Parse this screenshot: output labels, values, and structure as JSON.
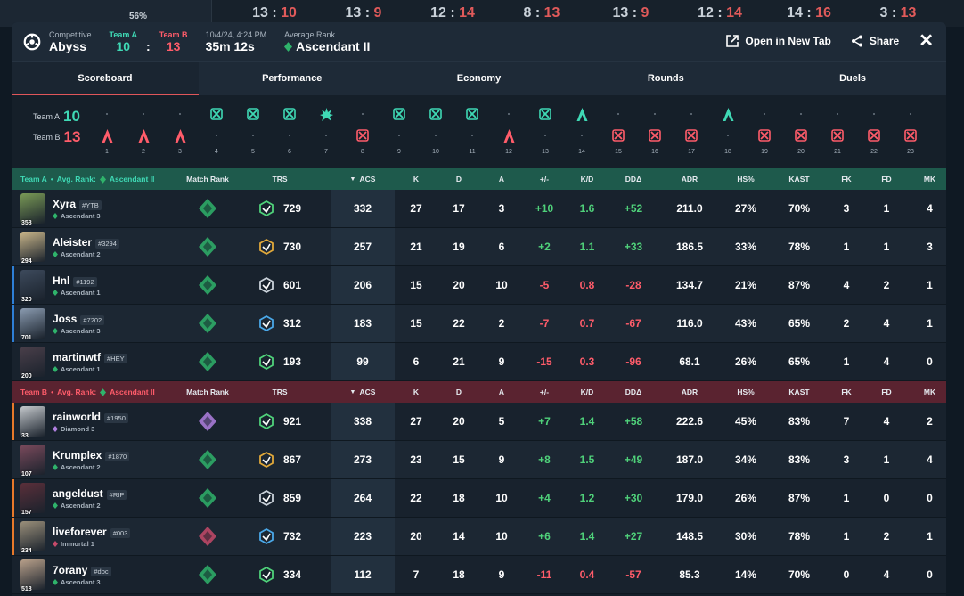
{
  "background_scores": [
    {
      "l": "13",
      "r": "10"
    },
    {
      "l": "13",
      "r": "9"
    },
    {
      "l": "12",
      "r": "14"
    },
    {
      "l": "8",
      "r": "13"
    },
    {
      "l": "13",
      "r": "9"
    },
    {
      "l": "12",
      "r": "14"
    },
    {
      "l": "14",
      "r": "16"
    },
    {
      "l": "3",
      "r": "13"
    }
  ],
  "background_left_pct": "56%",
  "header": {
    "mode": "Competitive",
    "map": "Abyss",
    "team_a_label": "Team A",
    "team_b_label": "Team B",
    "team_a_score": "10",
    "team_b_score": "13",
    "score_sep": ":",
    "date": "10/4/24, 4:24 PM",
    "duration": "35m 12s",
    "avg_rank_label": "Average Rank",
    "avg_rank": "Ascendant II",
    "open_new_tab": "Open in New Tab",
    "share": "Share"
  },
  "tabs": [
    "Scoreboard",
    "Performance",
    "Economy",
    "Rounds",
    "Duels"
  ],
  "timeline": {
    "team_a_label": "Team A",
    "team_a_score": "10",
    "team_b_label": "Team B",
    "team_b_score": "13",
    "rounds": [
      {
        "n": "1",
        "w": "B",
        "i": "spike"
      },
      {
        "n": "2",
        "w": "B",
        "i": "spike"
      },
      {
        "n": "3",
        "w": "B",
        "i": "spike"
      },
      {
        "n": "4",
        "w": "A",
        "i": "elim"
      },
      {
        "n": "5",
        "w": "A",
        "i": "elim"
      },
      {
        "n": "6",
        "w": "A",
        "i": "elim"
      },
      {
        "n": "7",
        "w": "A",
        "i": "boom"
      },
      {
        "n": "8",
        "w": "B",
        "i": "elim"
      },
      {
        "n": "9",
        "w": "A",
        "i": "elim"
      },
      {
        "n": "10",
        "w": "A",
        "i": "elim"
      },
      {
        "n": "11",
        "w": "A",
        "i": "elim"
      },
      {
        "n": "12",
        "w": "B",
        "i": "spike"
      },
      {
        "n": "13",
        "w": "A",
        "i": "elim"
      },
      {
        "n": "14",
        "w": "A",
        "i": "spike"
      },
      {
        "n": "15",
        "w": "B",
        "i": "elim"
      },
      {
        "n": "16",
        "w": "B",
        "i": "elim"
      },
      {
        "n": "17",
        "w": "B",
        "i": "elim"
      },
      {
        "n": "18",
        "w": "A",
        "i": "spike"
      },
      {
        "n": "19",
        "w": "B",
        "i": "elim"
      },
      {
        "n": "20",
        "w": "B",
        "i": "elim"
      },
      {
        "n": "21",
        "w": "B",
        "i": "elim"
      },
      {
        "n": "22",
        "w": "B",
        "i": "elim"
      },
      {
        "n": "23",
        "w": "B",
        "i": "elim"
      }
    ]
  },
  "columns": {
    "match_rank": "Match Rank",
    "trs": "TRS",
    "acs": "ACS",
    "k": "K",
    "d": "D",
    "a": "A",
    "pm": "+/-",
    "kd": "K/D",
    "dd": "DDΔ",
    "adr": "ADR",
    "hs": "HS%",
    "kast": "KAST",
    "fk": "FK",
    "fd": "FD",
    "mk": "MK"
  },
  "team_a": {
    "label": "Team A",
    "avg_label": "Avg. Rank:",
    "avg_rank": "Ascendant II",
    "players": [
      {
        "name": "Xyra",
        "tag": "#YTB",
        "rank": "Ascendant 3",
        "lvl": "358",
        "trs": "729",
        "acs": "332",
        "k": "27",
        "d": "17",
        "a": "3",
        "pm": "+10",
        "kd": "1.6",
        "dd": "+52",
        "adr": "211.0",
        "hs": "27%",
        "kast": "70%",
        "fk": "3",
        "fd": "1",
        "mk": "4",
        "color": "#7a9a56",
        "side": ""
      },
      {
        "name": "Aleister",
        "tag": "#3294",
        "rank": "Ascendant 2",
        "lvl": "294",
        "trs": "730",
        "acs": "257",
        "k": "21",
        "d": "19",
        "a": "6",
        "pm": "+2",
        "kd": "1.1",
        "dd": "+33",
        "adr": "186.5",
        "hs": "33%",
        "kast": "78%",
        "fk": "1",
        "fd": "1",
        "mk": "3",
        "color": "#c9b68a",
        "side": ""
      },
      {
        "name": "Hnl",
        "tag": "#1192",
        "rank": "Ascendant 1",
        "lvl": "320",
        "trs": "601",
        "acs": "206",
        "k": "15",
        "d": "20",
        "a": "10",
        "pm": "-5",
        "kd": "0.8",
        "dd": "-28",
        "adr": "134.7",
        "hs": "21%",
        "kast": "87%",
        "fk": "4",
        "fd": "2",
        "mk": "1",
        "color": "#3d4a5c",
        "side": "#2e7fd6"
      },
      {
        "name": "Joss",
        "tag": "#7202",
        "rank": "Ascendant 3",
        "lvl": "701",
        "trs": "312",
        "acs": "183",
        "k": "15",
        "d": "22",
        "a": "2",
        "pm": "-7",
        "kd": "0.7",
        "dd": "-67",
        "adr": "116.0",
        "hs": "43%",
        "kast": "65%",
        "fk": "2",
        "fd": "4",
        "mk": "1",
        "color": "#8a9bb0",
        "side": "#2e7fd6"
      },
      {
        "name": "martinwtf",
        "tag": "#HEY",
        "rank": "Ascendant 1",
        "lvl": "200",
        "trs": "193",
        "acs": "99",
        "k": "6",
        "d": "21",
        "a": "9",
        "pm": "-15",
        "kd": "0.3",
        "dd": "-96",
        "adr": "68.1",
        "hs": "26%",
        "kast": "65%",
        "fk": "1",
        "fd": "4",
        "mk": "0",
        "color": "#4a3f4a",
        "side": ""
      }
    ]
  },
  "team_b": {
    "label": "Team B",
    "avg_label": "Avg. Rank:",
    "avg_rank": "Ascendant II",
    "players": [
      {
        "name": "rainworld",
        "tag": "#1950",
        "rank": "Diamond 3",
        "lvl": "33",
        "trs": "921",
        "acs": "338",
        "k": "27",
        "d": "20",
        "a": "5",
        "pm": "+7",
        "kd": "1.4",
        "dd": "+58",
        "adr": "222.6",
        "hs": "45%",
        "kast": "83%",
        "fk": "7",
        "fd": "4",
        "mk": "2",
        "color": "#c4c8cc",
        "side": "#e8792a"
      },
      {
        "name": "Krumplex",
        "tag": "#1870",
        "rank": "Ascendant 2",
        "lvl": "107",
        "trs": "867",
        "acs": "273",
        "k": "23",
        "d": "15",
        "a": "9",
        "pm": "+8",
        "kd": "1.5",
        "dd": "+49",
        "adr": "187.0",
        "hs": "34%",
        "kast": "83%",
        "fk": "3",
        "fd": "1",
        "mk": "4",
        "color": "#7b4a5c",
        "side": ""
      },
      {
        "name": "angeldust",
        "tag": "#RIP",
        "rank": "Ascendant 2",
        "lvl": "157",
        "trs": "859",
        "acs": "264",
        "k": "22",
        "d": "18",
        "a": "10",
        "pm": "+4",
        "kd": "1.2",
        "dd": "+30",
        "adr": "179.0",
        "hs": "26%",
        "kast": "87%",
        "fk": "1",
        "fd": "0",
        "mk": "0",
        "color": "#5a2f3a",
        "side": "#e8792a"
      },
      {
        "name": "liveforever",
        "tag": "#003",
        "rank": "Immortal 1",
        "lvl": "234",
        "trs": "732",
        "acs": "223",
        "k": "20",
        "d": "14",
        "a": "10",
        "pm": "+6",
        "kd": "1.4",
        "dd": "+27",
        "adr": "148.5",
        "hs": "30%",
        "kast": "78%",
        "fk": "1",
        "fd": "2",
        "mk": "1",
        "color": "#9a8f7a",
        "side": "#e8792a"
      },
      {
        "name": "7orany",
        "tag": "#doc",
        "rank": "Ascendant 3",
        "lvl": "518",
        "trs": "334",
        "acs": "112",
        "k": "7",
        "d": "18",
        "a": "9",
        "pm": "-11",
        "kd": "0.4",
        "dd": "-57",
        "adr": "85.3",
        "hs": "14%",
        "kast": "70%",
        "fk": "0",
        "fd": "4",
        "mk": "0",
        "color": "#b8a08a",
        "side": ""
      }
    ]
  },
  "colors": {
    "team_a": "#3fd9b5",
    "team_b": "#ff5c6a",
    "positive": "#4fd17a",
    "negative": "#ff5c6a"
  }
}
